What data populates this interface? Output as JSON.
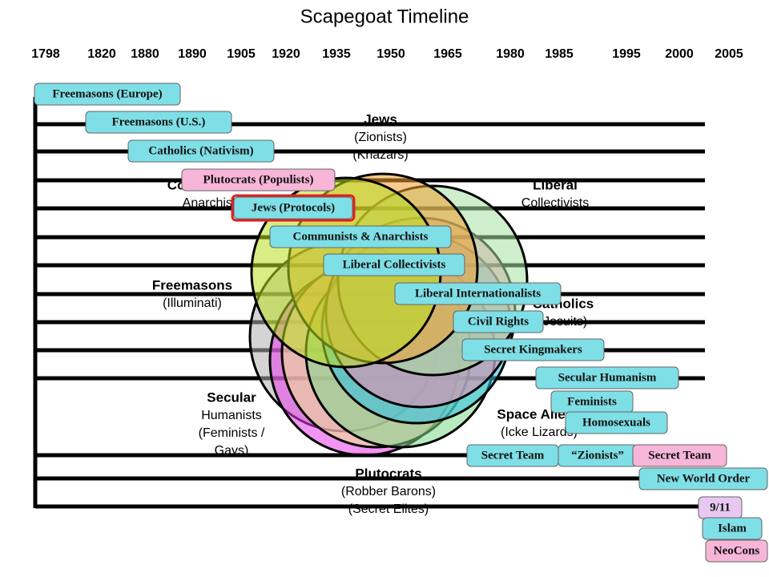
{
  "title": "Scapegoat Timeline",
  "years": [
    "1798",
    "1820",
    "1880",
    "1890",
    "1905",
    "1920",
    "1935",
    "1950",
    "1965",
    "1980",
    "1985",
    "1995",
    "2000",
    "2005"
  ],
  "groups": [
    {
      "lines": [
        "Jews",
        "(Zionists)",
        "(Khazars)"
      ]
    },
    {
      "lines": [
        "Liberal",
        "Collectivists"
      ]
    },
    {
      "lines": [
        "Communists /",
        "Anarchists"
      ]
    },
    {
      "lines": [
        "Freemasons",
        "(Illuminati)"
      ]
    },
    {
      "lines": [
        "Catholics",
        "(Jesuits)"
      ]
    },
    {
      "lines": [
        "Secular",
        "Humanists",
        "(Feminists /",
        "Gays)"
      ]
    },
    {
      "lines": [
        "Space Aliens",
        "(Icke Lizards)"
      ]
    },
    {
      "lines": [
        "Plutocrats",
        "(Robber Barons)",
        "(Secret Elites)"
      ]
    }
  ],
  "timeline": [
    "Freemasons (Europe)",
    "Freemasons (U.S.)",
    "Catholics (Nativism)",
    "Plutocrats (Populists)",
    "Jews (Protocols)",
    "Communists & Anarchists",
    "Liberal Collectivists",
    "Liberal Internationalists",
    "Civil Rights",
    "Secret Kingmakers",
    "Secular Humanism",
    "Feminists",
    "Homosexuals",
    "Secret Team",
    "“Zionists”",
    "Secret Team",
    "New World Order",
    "9/11",
    "Islam",
    "NeoCons"
  ]
}
